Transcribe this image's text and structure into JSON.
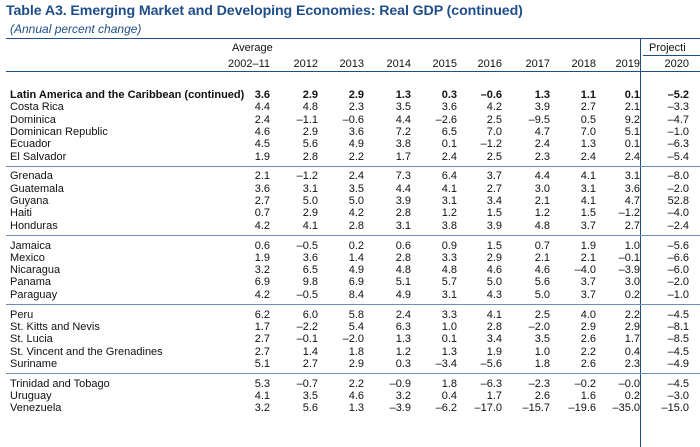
{
  "title": "Table A3. Emerging Market and Developing Economies: Real GDP (continued)",
  "subtitle": "(Annual percent change)",
  "header": {
    "average_label": "Average",
    "projections_label": "Projecti",
    "columns": [
      "2002–11",
      "2012",
      "2013",
      "2014",
      "2015",
      "2016",
      "2017",
      "2018",
      "2019",
      "2020"
    ]
  },
  "groups": [
    {
      "rows": [
        {
          "name": "Latin America and the Caribbean (continued)",
          "bold": true,
          "values": [
            "3.6",
            "2.9",
            "2.9",
            "1.3",
            "0.3",
            "–0.6",
            "1.3",
            "1.1",
            "0.1",
            "–5.2"
          ]
        },
        {
          "name": "Costa Rica",
          "values": [
            "4.4",
            "4.8",
            "2.3",
            "3.5",
            "3.6",
            "4.2",
            "3.9",
            "2.7",
            "2.1",
            "–3.3"
          ]
        },
        {
          "name": "Dominica",
          "values": [
            "2.4",
            "–1.1",
            "–0.6",
            "4.4",
            "–2.6",
            "2.5",
            "–9.5",
            "0.5",
            "9.2",
            "–4.7"
          ]
        },
        {
          "name": "Dominican Republic",
          "values": [
            "4.6",
            "2.9",
            "3.6",
            "7.2",
            "6.5",
            "7.0",
            "4.7",
            "7.0",
            "5.1",
            "–1.0"
          ]
        },
        {
          "name": "Ecuador",
          "values": [
            "4.5",
            "5.6",
            "4.9",
            "3.8",
            "0.1",
            "–1.2",
            "2.4",
            "1.3",
            "0.1",
            "–6.3"
          ]
        },
        {
          "name": "El Salvador",
          "values": [
            "1.9",
            "2.8",
            "2.2",
            "1.7",
            "2.4",
            "2.5",
            "2.3",
            "2.4",
            "2.4",
            "–5.4"
          ]
        }
      ]
    },
    {
      "rows": [
        {
          "name": "Grenada",
          "values": [
            "2.1",
            "–1.2",
            "2.4",
            "7.3",
            "6.4",
            "3.7",
            "4.4",
            "4.1",
            "3.1",
            "–8.0"
          ]
        },
        {
          "name": "Guatemala",
          "values": [
            "3.6",
            "3.1",
            "3.5",
            "4.4",
            "4.1",
            "2.7",
            "3.0",
            "3.1",
            "3.6",
            "–2.0"
          ]
        },
        {
          "name": "Guyana",
          "values": [
            "2.7",
            "5.0",
            "5.0",
            "3.9",
            "3.1",
            "3.4",
            "2.1",
            "4.1",
            "4.7",
            "52.8"
          ]
        },
        {
          "name": "Haiti",
          "values": [
            "0.7",
            "2.9",
            "4.2",
            "2.8",
            "1.2",
            "1.5",
            "1.2",
            "1.5",
            "–1.2",
            "–4.0"
          ]
        },
        {
          "name": "Honduras",
          "values": [
            "4.2",
            "4.1",
            "2.8",
            "3.1",
            "3.8",
            "3.9",
            "4.8",
            "3.7",
            "2.7",
            "–2.4"
          ]
        }
      ]
    },
    {
      "rows": [
        {
          "name": "Jamaica",
          "values": [
            "0.6",
            "–0.5",
            "0.2",
            "0.6",
            "0.9",
            "1.5",
            "0.7",
            "1.9",
            "1.0",
            "–5.6"
          ]
        },
        {
          "name": "Mexico",
          "values": [
            "1.9",
            "3.6",
            "1.4",
            "2.8",
            "3.3",
            "2.9",
            "2.1",
            "2.1",
            "–0.1",
            "–6.6"
          ]
        },
        {
          "name": "Nicaragua",
          "values": [
            "3.2",
            "6.5",
            "4.9",
            "4.8",
            "4.8",
            "4.6",
            "4.6",
            "–4.0",
            "–3.9",
            "–6.0"
          ]
        },
        {
          "name": "Panama",
          "values": [
            "6.9",
            "9.8",
            "6.9",
            "5.1",
            "5.7",
            "5.0",
            "5.6",
            "3.7",
            "3.0",
            "–2.0"
          ]
        },
        {
          "name": "Paraguay",
          "values": [
            "4.2",
            "–0.5",
            "8.4",
            "4.9",
            "3.1",
            "4.3",
            "5.0",
            "3.7",
            "0.2",
            "–1.0"
          ]
        }
      ]
    },
    {
      "rows": [
        {
          "name": "Peru",
          "values": [
            "6.2",
            "6.0",
            "5.8",
            "2.4",
            "3.3",
            "4.1",
            "2.5",
            "4.0",
            "2.2",
            "–4.5"
          ]
        },
        {
          "name": "St. Kitts and Nevis",
          "values": [
            "1.7",
            "–2.2",
            "5.4",
            "6.3",
            "1.0",
            "2.8",
            "–2.0",
            "2.9",
            "2.9",
            "–8.1"
          ]
        },
        {
          "name": "St. Lucia",
          "values": [
            "2.7",
            "–0.1",
            "–2.0",
            "1.3",
            "0.1",
            "3.4",
            "3.5",
            "2.6",
            "1.7",
            "–8.5"
          ]
        },
        {
          "name": "St. Vincent and the Grenadines",
          "values": [
            "2.7",
            "1.4",
            "1.8",
            "1.2",
            "1.3",
            "1.9",
            "1.0",
            "2.2",
            "0.4",
            "–4.5"
          ]
        },
        {
          "name": "Suriname",
          "values": [
            "5.1",
            "2.7",
            "2.9",
            "0.3",
            "–3.4",
            "–5.6",
            "1.8",
            "2.6",
            "2.3",
            "–4.9"
          ]
        }
      ]
    },
    {
      "rows": [
        {
          "name": "Trinidad and Tobago",
          "values": [
            "5.3",
            "–0.7",
            "2.2",
            "–0.9",
            "1.8",
            "–6.3",
            "–2.3",
            "–0.2",
            "–0.0",
            "–4.5"
          ]
        },
        {
          "name": "Uruguay",
          "values": [
            "4.1",
            "3.5",
            "4.6",
            "3.2",
            "0.4",
            "1.7",
            "2.6",
            "1.6",
            "0.2",
            "–3.0"
          ]
        },
        {
          "name": "Venezuela",
          "values": [
            "3.2",
            "5.6",
            "1.3",
            "–3.9",
            "–6.2",
            "–17.0",
            "–15.7",
            "–19.6",
            "–35.0",
            "–15.0"
          ]
        }
      ]
    }
  ]
}
